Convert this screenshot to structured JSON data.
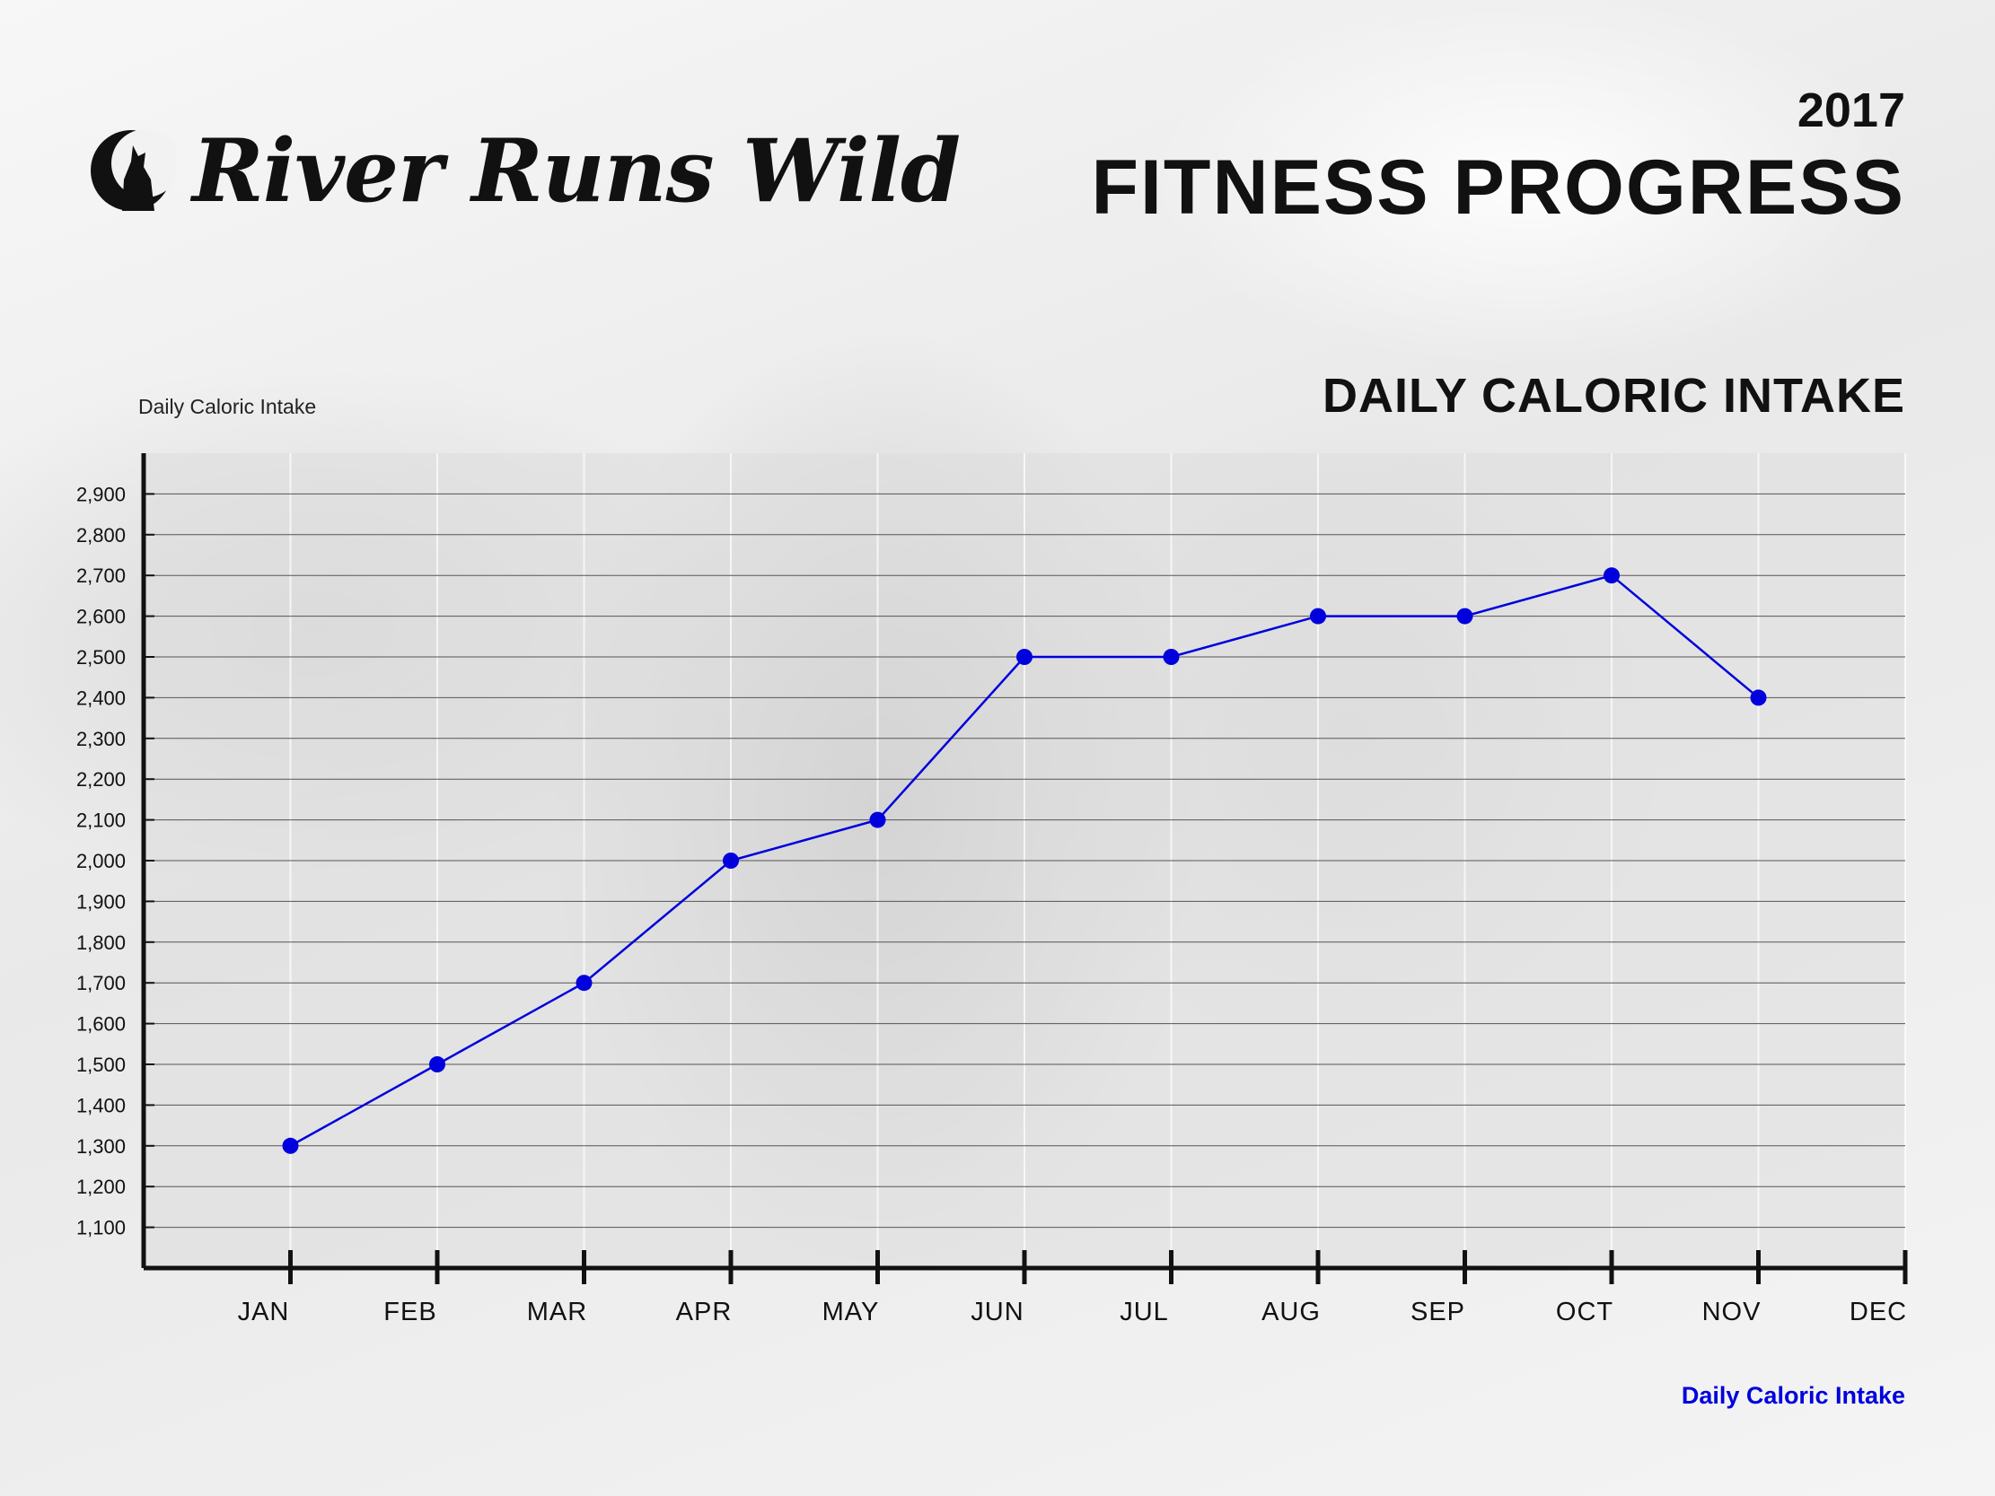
{
  "brand": {
    "name": "River Runs Wild"
  },
  "header": {
    "year": "2017",
    "title": "FITNESS PROGRESS"
  },
  "colors": {
    "series": "#0000dd",
    "text": "#111111",
    "plot_bg": "#dddddd"
  },
  "chart_data": {
    "type": "line",
    "title": "DAILY CALORIC INTAKE",
    "ylabel": "Daily Caloric Intake",
    "xlabel": "",
    "categories": [
      "JAN",
      "FEB",
      "MAR",
      "APR",
      "MAY",
      "JUN",
      "JUL",
      "AUG",
      "SEP",
      "OCT",
      "NOV",
      "DEC"
    ],
    "yticks": [
      1100,
      1200,
      1300,
      1400,
      1500,
      1600,
      1700,
      1800,
      1900,
      2000,
      2100,
      2200,
      2300,
      2400,
      2500,
      2600,
      2700,
      2800,
      2900
    ],
    "ylim": [
      1000,
      3000
    ],
    "grid": true,
    "legend_position": "bottom-right",
    "series": [
      {
        "name": "Daily Caloric Intake",
        "values": [
          1300,
          1500,
          1700,
          2000,
          2100,
          2500,
          2500,
          2600,
          2600,
          2700,
          2400,
          null
        ]
      }
    ]
  }
}
